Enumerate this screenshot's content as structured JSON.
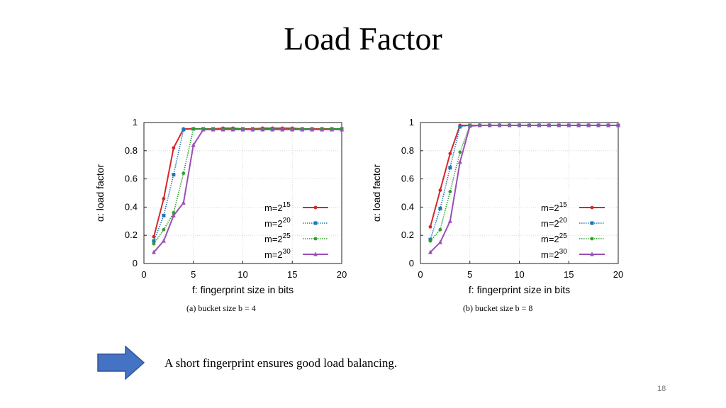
{
  "slide": {
    "title": "Load Factor",
    "note": "A short fingerprint ensures good load balancing.",
    "page_number": "18",
    "arrow_icon": "right-arrow-icon",
    "arrow_color": "#4472c4"
  },
  "chart_data": [
    {
      "type": "line",
      "caption": "(a)  bucket size b = 4",
      "xlabel": "f: fingerprint size in bits",
      "ylabel": "α: load factor",
      "xlim": [
        0,
        20
      ],
      "ylim": [
        0,
        1
      ],
      "xticks": [
        0,
        5,
        10,
        15,
        20
      ],
      "yticks": [
        0,
        0.2,
        0.4,
        0.6,
        0.8,
        1
      ],
      "grid": true,
      "legend_position": "lower-right",
      "x": [
        1,
        2,
        3,
        4,
        5,
        6,
        7,
        8,
        9,
        10,
        11,
        12,
        13,
        14,
        15,
        16,
        17,
        18,
        19,
        20
      ],
      "series": [
        {
          "name_base": "m=2",
          "name_exp": "15",
          "color": "#d62728",
          "style": "solid",
          "marker": "circle",
          "values": [
            0.19,
            0.46,
            0.82,
            0.955,
            0.955,
            0.955,
            0.955,
            0.96,
            0.96,
            0.955,
            0.955,
            0.96,
            0.96,
            0.96,
            0.96,
            0.955,
            0.955,
            0.955,
            0.955,
            0.955
          ]
        },
        {
          "name_base": "m=2",
          "name_exp": "20",
          "color": "#1f77b4",
          "style": "dotted",
          "marker": "square",
          "values": [
            0.16,
            0.34,
            0.63,
            0.95,
            0.955,
            0.955,
            0.955,
            0.955,
            0.955,
            0.955,
            0.955,
            0.955,
            0.955,
            0.955,
            0.955,
            0.955,
            0.955,
            0.955,
            0.955,
            0.955
          ]
        },
        {
          "name_base": "m=2",
          "name_exp": "25",
          "color": "#2ca02c",
          "style": "dotted",
          "marker": "circle",
          "values": [
            0.14,
            0.24,
            0.36,
            0.64,
            0.955,
            0.955,
            0.955,
            0.955,
            0.955,
            0.955,
            0.955,
            0.955,
            0.955,
            0.955,
            0.955,
            0.955,
            0.955,
            0.955,
            0.955,
            0.955
          ]
        },
        {
          "name_base": "m=2",
          "name_exp": "30",
          "color": "#9b4fb5",
          "style": "solid",
          "marker": "triangle",
          "values": [
            0.08,
            0.16,
            0.34,
            0.43,
            0.84,
            0.95,
            0.95,
            0.95,
            0.95,
            0.95,
            0.95,
            0.95,
            0.95,
            0.95,
            0.95,
            0.95,
            0.95,
            0.95,
            0.95,
            0.95
          ]
        }
      ]
    },
    {
      "type": "line",
      "caption": "(b)  bucket size b = 8",
      "xlabel": "f: fingerprint size in bits",
      "ylabel": "α: load factor",
      "xlim": [
        0,
        20
      ],
      "ylim": [
        0,
        1
      ],
      "xticks": [
        0,
        5,
        10,
        15,
        20
      ],
      "yticks": [
        0,
        0.2,
        0.4,
        0.6,
        0.8,
        1
      ],
      "grid": true,
      "legend_position": "lower-right",
      "x": [
        1,
        2,
        3,
        4,
        5,
        6,
        7,
        8,
        9,
        10,
        11,
        12,
        13,
        14,
        15,
        16,
        17,
        18,
        19,
        20
      ],
      "series": [
        {
          "name_base": "m=2",
          "name_exp": "15",
          "color": "#d62728",
          "style": "solid",
          "marker": "circle",
          "values": [
            0.26,
            0.52,
            0.78,
            0.98,
            0.98,
            0.98,
            0.98,
            0.98,
            0.98,
            0.98,
            0.98,
            0.98,
            0.98,
            0.98,
            0.98,
            0.98,
            0.98,
            0.98,
            0.98,
            0.98
          ]
        },
        {
          "name_base": "m=2",
          "name_exp": "20",
          "color": "#1f77b4",
          "style": "dotted",
          "marker": "square",
          "values": [
            0.17,
            0.39,
            0.68,
            0.97,
            0.98,
            0.98,
            0.98,
            0.98,
            0.98,
            0.98,
            0.98,
            0.98,
            0.98,
            0.98,
            0.98,
            0.98,
            0.98,
            0.98,
            0.98,
            0.98
          ]
        },
        {
          "name_base": "m=2",
          "name_exp": "25",
          "color": "#2ca02c",
          "style": "dotted",
          "marker": "circle",
          "values": [
            0.16,
            0.24,
            0.51,
            0.79,
            0.98,
            0.98,
            0.98,
            0.98,
            0.98,
            0.98,
            0.98,
            0.98,
            0.98,
            0.98,
            0.98,
            0.98,
            0.98,
            0.98,
            0.98,
            0.98
          ]
        },
        {
          "name_base": "m=2",
          "name_exp": "30",
          "color": "#9b4fb5",
          "style": "solid",
          "marker": "triangle",
          "values": [
            0.08,
            0.15,
            0.3,
            0.72,
            0.975,
            0.98,
            0.98,
            0.98,
            0.98,
            0.98,
            0.98,
            0.98,
            0.98,
            0.98,
            0.98,
            0.98,
            0.98,
            0.98,
            0.98,
            0.98
          ]
        }
      ]
    }
  ]
}
